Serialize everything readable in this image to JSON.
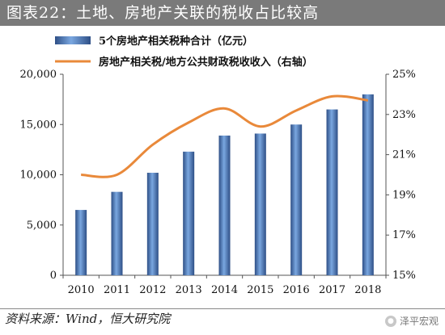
{
  "title": "图表22：土地、房地产关联的税收占比较高",
  "source": "资料来源：Wind，恒大研究院",
  "watermark": "泽平宏观",
  "colors": {
    "bar_top": "#2e4f86",
    "bar_mid": "#6b9ad6",
    "line": "#e9893a",
    "axis": "#555555"
  },
  "chart_data": {
    "type": "bar",
    "categories": [
      "2010",
      "2011",
      "2012",
      "2013",
      "2014",
      "2015",
      "2016",
      "2017",
      "2018"
    ],
    "series": [
      {
        "name": "5个房地产相关税种合计（亿元）",
        "type": "bar",
        "axis": "left",
        "values": [
          6500,
          8300,
          10200,
          12300,
          13900,
          14100,
          15000,
          16500,
          18000
        ]
      },
      {
        "name": "房地产相关税/地方公共财政税收收入（右轴）",
        "type": "line",
        "axis": "right",
        "values": [
          20.0,
          20.0,
          21.5,
          22.6,
          23.3,
          22.4,
          23.2,
          23.9,
          23.7
        ]
      }
    ],
    "y_left": {
      "min": 0,
      "max": 20000,
      "ticks": [
        "0",
        "5,000",
        "10,000",
        "15,000",
        "20,000"
      ]
    },
    "y_right": {
      "min": 15,
      "max": 25,
      "ticks": [
        "15%",
        "17%",
        "19%",
        "21%",
        "23%",
        "25%"
      ]
    },
    "legend_position": "top"
  }
}
